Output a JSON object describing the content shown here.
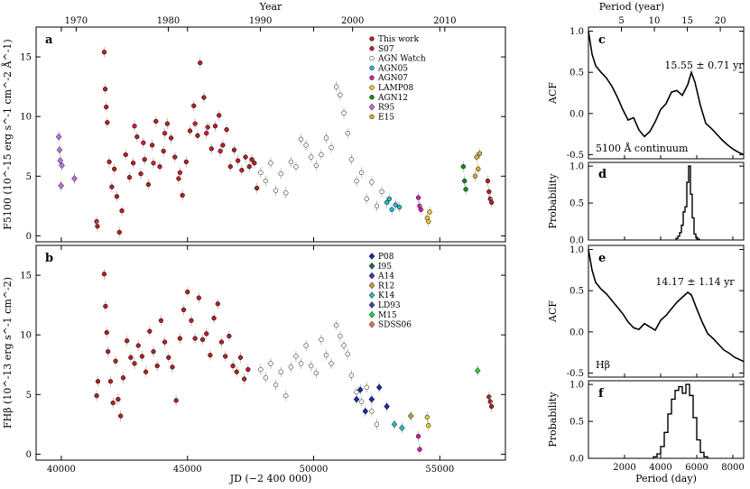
{
  "chart_data": [
    {
      "panel": "a",
      "type": "scatter",
      "ylabel": "F5100 (10^-15 erg s^-1 cm^-2 Å^-1)",
      "x_top_label": "Year",
      "top_ticks": [
        "1970",
        "1980",
        "1990",
        "2000",
        "2010"
      ],
      "top_tick_jd": [
        40587,
        44239,
        47892,
        51544,
        55197
      ],
      "xlim": [
        39000,
        57600
      ],
      "ylim": [
        -0.5,
        17.5
      ],
      "yticks": [
        0,
        5,
        10,
        15
      ],
      "legend": [
        {
          "name": "This work",
          "color": "#b22222",
          "marker": "circle"
        },
        {
          "name": "S07",
          "color": "#d01c3c",
          "marker": "circle"
        },
        {
          "name": "AGN Watch",
          "color": "#ffffff",
          "marker": "circle"
        },
        {
          "name": "AGN05",
          "color": "#20c0c8",
          "marker": "circle"
        },
        {
          "name": "AGN07",
          "color": "#d020a0",
          "marker": "circle"
        },
        {
          "name": "LAMP08",
          "color": "#e8d020",
          "marker": "circle"
        },
        {
          "name": "AGN12",
          "color": "#1a8a20",
          "marker": "circle"
        },
        {
          "name": "R95",
          "color": "#c070e0",
          "marker": "diamond"
        },
        {
          "name": "E15",
          "color": "#d8b020",
          "marker": "circle"
        }
      ],
      "series": [
        {
          "name": "R95",
          "x": [
            39900,
            39930,
            39960,
            39990,
            40020,
            40520
          ],
          "y": [
            8.3,
            7.2,
            6.3,
            4.2,
            5.9,
            4.8
          ]
        },
        {
          "name": "This work",
          "x": [
            41400,
            41430,
            41700,
            41740,
            41780,
            41820,
            41900,
            42000,
            42100,
            42200,
            42300,
            42400,
            42550,
            42700,
            42850,
            43000,
            43150,
            43300,
            43450,
            43600,
            43750,
            43900,
            44050,
            44200,
            44350,
            44500,
            44650,
            44800,
            44950,
            45100,
            45250,
            45400,
            45500,
            45650,
            45800,
            45950,
            46100,
            46250,
            46400,
            46550,
            46700,
            46850,
            47000,
            47150,
            47300,
            47450,
            47550,
            47650,
            47750
          ],
          "y": [
            1.2,
            0.8,
            15.4,
            12.3,
            10.8,
            9.5,
            6.2,
            4.1,
            5.6,
            3.3,
            0.3,
            2.1,
            6.8,
            4.9,
            6.1,
            8.3,
            5.2,
            6.4,
            4.3,
            7.6,
            9.6,
            5.8,
            7.1,
            9.4,
            8.2,
            6.6,
            4.8,
            3.4,
            6.2,
            8.8,
            10.9,
            8.4,
            14.5,
            11.6,
            9.1,
            7.3,
            9.2,
            10.1,
            7.6,
            8.9,
            5.8,
            7.2,
            6.3,
            5.5,
            6.6,
            5.8,
            6.4,
            6.1,
            4.0
          ]
        },
        {
          "name": "S07",
          "x": [
            42900,
            43250,
            43650,
            44100,
            44700,
            45300,
            45750,
            46300
          ],
          "y": [
            9.2,
            7.8,
            6.1,
            8.6,
            5.3,
            9.4,
            8.6,
            7.1
          ]
        },
        {
          "name": "AGN Watch",
          "x": [
            47900,
            48100,
            48300,
            48500,
            48700,
            48900,
            49100,
            49300,
            49500,
            49700,
            49900,
            50100,
            50300,
            50500,
            50700,
            50900,
            51050,
            51200,
            51350,
            51500,
            51700,
            51900,
            52100,
            52300,
            52500,
            52700
          ],
          "y": [
            5.3,
            4.6,
            6.1,
            3.8,
            5.2,
            3.6,
            6.2,
            5.8,
            8.1,
            7.6,
            6.6,
            5.9,
            6.8,
            8.2,
            7.4,
            12.5,
            11.8,
            10.3,
            8.6,
            6.4,
            4.6,
            5.3,
            3.1,
            4.5,
            2.5,
            3.7
          ]
        },
        {
          "name": "AGN05",
          "x": [
            52900,
            53000,
            53100,
            53250,
            53400
          ],
          "y": [
            2.8,
            3.1,
            2.2,
            2.6,
            2.4
          ]
        },
        {
          "name": "AGN07",
          "x": [
            54150,
            54200,
            54250
          ],
          "y": [
            3.2,
            2.5,
            2.2
          ]
        },
        {
          "name": "LAMP08",
          "x": [
            54500,
            54550,
            54600
          ],
          "y": [
            1.5,
            1.2,
            2.0
          ]
        },
        {
          "name": "AGN12",
          "x": [
            55930,
            55980,
            56030
          ],
          "y": [
            5.8,
            4.6,
            3.9
          ]
        },
        {
          "name": "E15",
          "x": [
            56400,
            56460,
            56520,
            56580
          ],
          "y": [
            5.0,
            6.6,
            5.6,
            6.9
          ]
        },
        {
          "name": "This work (late)",
          "x": [
            56900,
            56950,
            57000,
            57050
          ],
          "y": [
            4.6,
            3.7,
            3.1,
            2.8
          ]
        }
      ]
    },
    {
      "panel": "b",
      "type": "scatter",
      "xlabel": "JD (−2 400 000)",
      "ylabel": "FHβ (10^-13 erg s^-1 cm^-2)",
      "xlim": [
        39000,
        57600
      ],
      "ylim": [
        -0.5,
        17.5
      ],
      "xticks": [
        40000,
        45000,
        50000,
        55000
      ],
      "yticks": [
        0,
        5,
        10,
        15
      ],
      "legend": [
        {
          "name": "P08",
          "color": "#1a2aa8",
          "marker": "diamond"
        },
        {
          "name": "I95",
          "color": "#1a6a6a",
          "marker": "diamond"
        },
        {
          "name": "A14",
          "color": "#4a3aa0",
          "marker": "diamond"
        },
        {
          "name": "R12",
          "color": "#c0a040",
          "marker": "diamond"
        },
        {
          "name": "K14",
          "color": "#30b8c0",
          "marker": "diamond"
        },
        {
          "name": "LD93",
          "color": "#3a4aa0",
          "marker": "diamond"
        },
        {
          "name": "M15",
          "color": "#30d040",
          "marker": "diamond"
        },
        {
          "name": "SDSS06",
          "color": "#e07060",
          "marker": "diamond"
        }
      ],
      "series": [
        {
          "name": "This work",
          "x": [
            41400,
            41450,
            41700,
            41750,
            41800,
            41850,
            41950,
            42050,
            42150,
            42250,
            42350,
            42450,
            42600,
            42750,
            42900,
            43050,
            43200,
            43350,
            43500,
            43650,
            43800,
            43950,
            44100,
            44250,
            44400,
            44550,
            44700,
            44850,
            45000,
            45150,
            45300,
            45450,
            45600,
            45750,
            45900,
            46050,
            46200,
            46350,
            46500,
            46650,
            46800,
            46950,
            47100,
            47250,
            47400
          ],
          "y": [
            4.9,
            6.1,
            15.1,
            12.4,
            10.2,
            8.6,
            6.1,
            4.3,
            7.8,
            4.6,
            3.2,
            6.4,
            9.5,
            8.1,
            7.6,
            9.1,
            8.2,
            6.9,
            10.3,
            8.6,
            7.4,
            11.2,
            9.4,
            8.1,
            7.3,
            4.5,
            9.7,
            12.1,
            13.6,
            11.2,
            9.7,
            13.1,
            9.6,
            10.1,
            8.3,
            11.4,
            12.6,
            9.4,
            8.2,
            9.9,
            7.4,
            6.9,
            8.1,
            6.3,
            7.1
          ]
        },
        {
          "name": "AGN Watch",
          "x": [
            47900,
            48100,
            48300,
            48500,
            48700,
            48900,
            49100,
            49300,
            49500,
            49700,
            49900,
            50100,
            50300,
            50500,
            50700,
            50900,
            51050,
            51200,
            51350,
            51500,
            51700,
            51900,
            52100,
            52300,
            52500
          ],
          "y": [
            7.1,
            6.4,
            7.6,
            5.8,
            6.9,
            4.9,
            7.3,
            8.2,
            7.6,
            9.1,
            7.4,
            6.8,
            9.6,
            8.3,
            7.6,
            10.8,
            9.9,
            9.1,
            8.4,
            6.6,
            5.2,
            4.4,
            5.6,
            3.6,
            2.5
          ]
        },
        {
          "name": "P08",
          "x": [
            51700,
            51850,
            52050,
            52300,
            52600,
            52900
          ],
          "y": [
            4.6,
            5.4,
            3.6,
            4.6,
            5.6,
            4.0
          ]
        },
        {
          "name": "K14",
          "x": [
            53200,
            53500
          ],
          "y": [
            2.5,
            2.2
          ]
        },
        {
          "name": "R12",
          "x": [
            53850
          ],
          "y": [
            3.2
          ]
        },
        {
          "name": "AGN07",
          "x": [
            54150,
            54200
          ],
          "y": [
            1.5,
            0.4
          ]
        },
        {
          "name": "LAMP08",
          "x": [
            54500,
            54550
          ],
          "y": [
            3.1,
            2.4
          ]
        },
        {
          "name": "M15",
          "x": [
            56500
          ],
          "y": [
            7.0
          ]
        },
        {
          "name": "This work (late)",
          "x": [
            56950,
            57000,
            57050
          ],
          "y": [
            4.8,
            4.4,
            4.0
          ]
        }
      ]
    },
    {
      "panel": "c",
      "type": "line",
      "x_top_label": "Period (year)",
      "top_ticks": [
        "5",
        "10",
        "15",
        "20"
      ],
      "xlim": [
        0,
        8600
      ],
      "ylim": [
        -0.55,
        1.05
      ],
      "yticks": [
        -0.5,
        0.0,
        0.5,
        1.0
      ],
      "ylabel": "ACF",
      "annotation": "15.55 ± 0.71 yr",
      "label": "5100 Å continuum",
      "x": [
        0,
        200,
        400,
        700,
        1000,
        1300,
        1600,
        1900,
        2200,
        2500,
        2800,
        3100,
        3400,
        3700,
        4000,
        4300,
        4600,
        4900,
        5200,
        5500,
        5700,
        5900,
        6200,
        6500,
        6800,
        7100,
        7400,
        7700,
        8000,
        8300,
        8600
      ],
      "y": [
        1.0,
        0.72,
        0.58,
        0.5,
        0.43,
        0.33,
        0.2,
        0.05,
        -0.08,
        -0.05,
        -0.2,
        -0.28,
        -0.22,
        -0.1,
        0.05,
        0.12,
        0.26,
        0.28,
        0.22,
        0.35,
        0.5,
        0.38,
        0.1,
        -0.12,
        -0.18,
        -0.25,
        -0.32,
        -0.38,
        -0.43,
        -0.47,
        -0.5
      ]
    },
    {
      "panel": "d",
      "type": "bar",
      "ylabel": "Probability",
      "xlim": [
        0,
        8600
      ],
      "ylim": [
        0,
        1.05
      ],
      "yticks": [
        0.0,
        0.5,
        1.0
      ],
      "x": [
        4900,
        5000,
        5100,
        5200,
        5300,
        5400,
        5500,
        5600,
        5700,
        5800,
        5900,
        6000,
        6100
      ],
      "y": [
        0.02,
        0.05,
        0.1,
        0.2,
        0.38,
        0.45,
        0.78,
        1.0,
        0.62,
        0.3,
        0.08,
        0.03,
        0.01
      ]
    },
    {
      "panel": "e",
      "type": "line",
      "ylabel": "ACF",
      "xlim": [
        0,
        8600
      ],
      "ylim": [
        -0.55,
        1.05
      ],
      "yticks": [
        -0.5,
        0.0,
        0.5,
        1.0
      ],
      "annotation": "14.17 ± 1.14 yr",
      "label": "Hβ",
      "x": [
        0,
        200,
        400,
        700,
        1000,
        1300,
        1600,
        1900,
        2200,
        2500,
        2800,
        3100,
        3400,
        3700,
        4000,
        4300,
        4600,
        4900,
        5200,
        5500,
        5700,
        6000,
        6300,
        6600,
        6900,
        7200,
        7500,
        7800,
        8100,
        8400,
        8600
      ],
      "y": [
        1.0,
        0.75,
        0.6,
        0.52,
        0.46,
        0.38,
        0.3,
        0.22,
        0.12,
        0.05,
        0.03,
        0.1,
        0.06,
        0.02,
        0.14,
        0.2,
        0.28,
        0.36,
        0.42,
        0.48,
        0.45,
        0.28,
        0.12,
        -0.02,
        -0.08,
        -0.15,
        -0.22,
        -0.26,
        -0.31,
        -0.34,
        -0.36
      ]
    },
    {
      "panel": "f",
      "type": "bar",
      "ylabel": "Probability",
      "xlabel": "Period (day)",
      "xlim": [
        0,
        8600
      ],
      "xticks": [
        2000,
        4000,
        6000,
        8000
      ],
      "ylim": [
        0,
        1.05
      ],
      "yticks": [
        0.0,
        0.5,
        1.0
      ],
      "x": [
        3700,
        3900,
        4100,
        4300,
        4500,
        4700,
        4900,
        5100,
        5300,
        5500,
        5700,
        5900,
        6100,
        6300,
        6500
      ],
      "y": [
        0.02,
        0.06,
        0.16,
        0.35,
        0.6,
        0.8,
        0.92,
        0.97,
        0.88,
        1.0,
        0.85,
        0.55,
        0.25,
        0.08,
        0.02
      ]
    }
  ]
}
